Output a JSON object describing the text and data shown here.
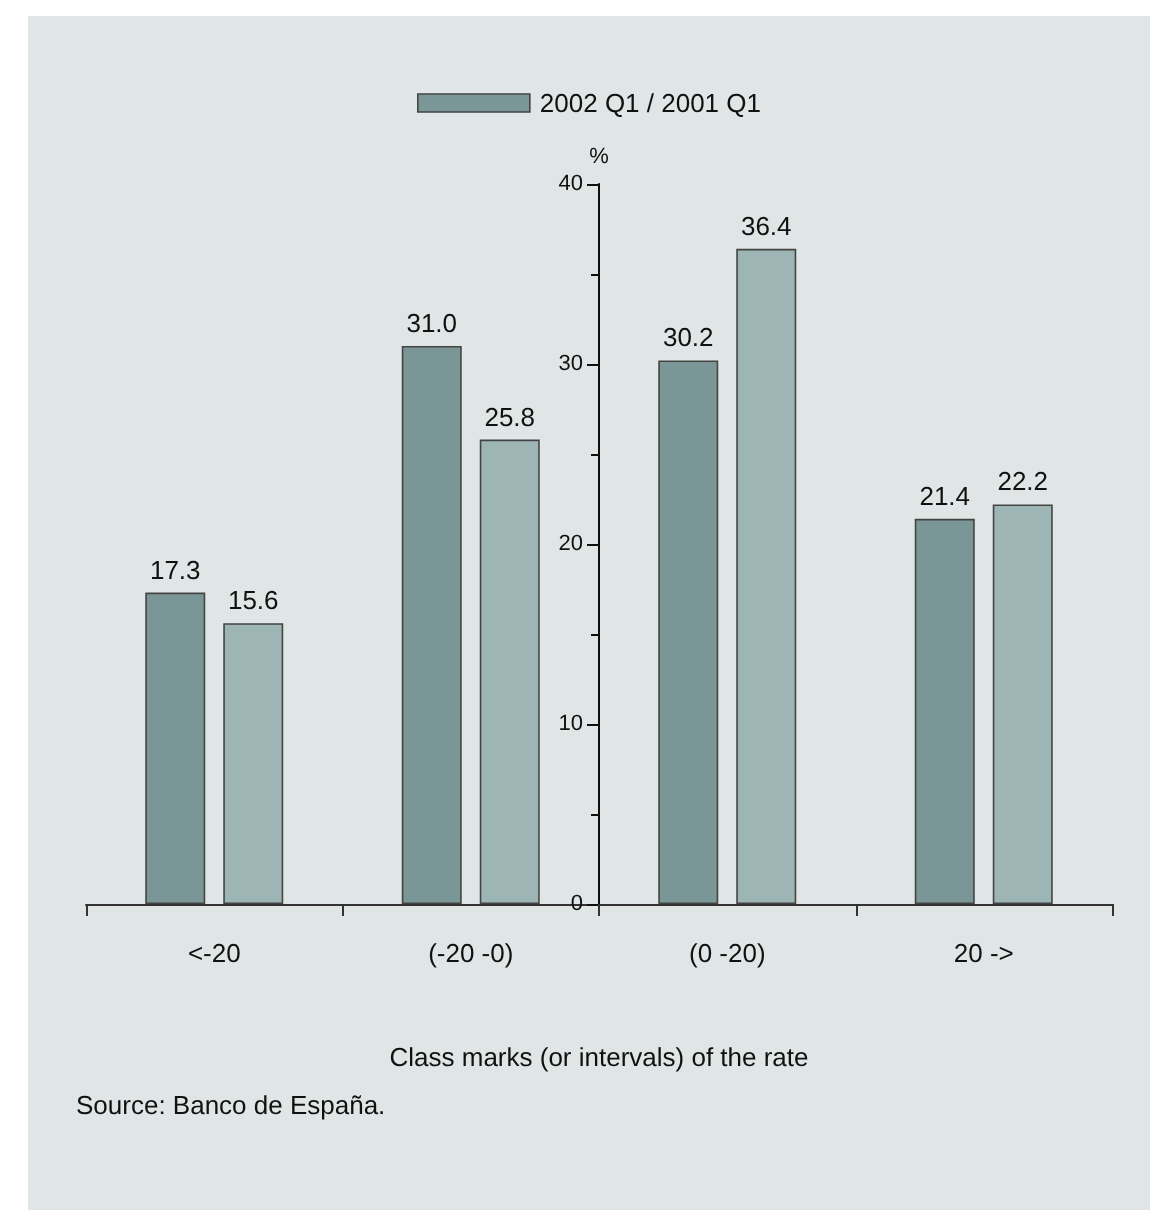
{
  "chart_data": {
    "type": "bar",
    "categories": [
      "<-20",
      "(-20 -0)",
      "(0 -20)",
      "20 ->"
    ],
    "series": [
      {
        "name": "2002 Q1 / 2001 Q1",
        "color": "#7a9696",
        "values": [
          17.3,
          31.0,
          30.2,
          21.4
        ],
        "value_labels": [
          "17.3",
          "31.0",
          "30.2",
          "21.4"
        ]
      },
      {
        "color": "#9db5b5",
        "values": [
          15.6,
          25.8,
          36.4,
          22.2
        ],
        "value_labels": [
          "15.6",
          "25.8",
          "36.4",
          "22.2"
        ]
      }
    ],
    "xlabel": "Class marks (or intervals) of the rate",
    "ylabel": "%",
    "ylim": [
      0,
      40
    ],
    "yticks": [
      0,
      10,
      20,
      30,
      40
    ],
    "grid": false,
    "legend": "top",
    "annotations": [
      "Source: Banco de España."
    ]
  }
}
